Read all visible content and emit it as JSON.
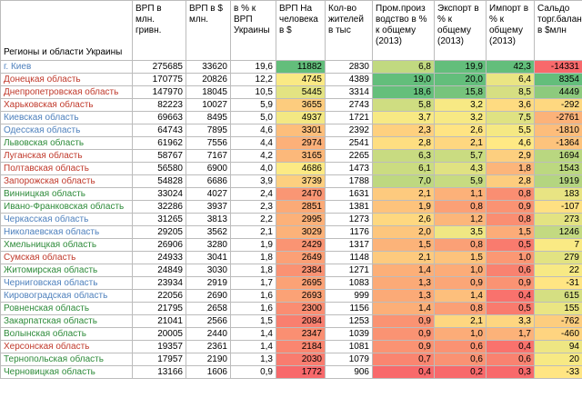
{
  "headers": [
    "Регионы и области Украины",
    "ВРП в млн. гривн.",
    "ВРП в $ млн.",
    "в % к ВРП Украины",
    "ВРП На человека в $",
    "Кол-во жителей в тыс",
    "Пром.произ водство в % к общему (2013)",
    "Экспорт в % к общему (2013)",
    "Импорт в % к общему (2013)",
    "Сальдо торг.баланса в $млн"
  ],
  "colors": {
    "region_blue": "#4f81bd",
    "region_red": "#c0392b",
    "region_green": "#2e8b3a",
    "heat_green": "#63be7b",
    "heat_yellow": "#ffeb84",
    "heat_red": "#f8696b"
  },
  "rows": [
    {
      "region": "г. Киев",
      "color": "blue",
      "c": [
        "275685",
        "33620",
        "19,6",
        "11882",
        "2830",
        "6,8",
        "19,9",
        "42,3",
        "-14331"
      ]
    },
    {
      "region": "Донецкая область",
      "color": "red",
      "c": [
        "170775",
        "20826",
        "12,2",
        "4745",
        "4389",
        "19,0",
        "20,0",
        "6,4",
        "8354"
      ]
    },
    {
      "region": "Днепропетровская область",
      "color": "red",
      "c": [
        "147970",
        "18045",
        "10,5",
        "5445",
        "3314",
        "18,6",
        "15,8",
        "8,5",
        "4449"
      ]
    },
    {
      "region": "Харьковская область",
      "color": "red",
      "c": [
        "82223",
        "10027",
        "5,9",
        "3655",
        "2743",
        "5,8",
        "3,2",
        "3,6",
        "-292"
      ]
    },
    {
      "region": "Киевская область",
      "color": "blue",
      "c": [
        "69663",
        "8495",
        "5,0",
        "4937",
        "1721",
        "3,7",
        "3,2",
        "7,5",
        "-2761"
      ]
    },
    {
      "region": "Одесская область",
      "color": "blue",
      "c": [
        "64743",
        "7895",
        "4,6",
        "3301",
        "2392",
        "2,3",
        "2,6",
        "5,5",
        "-1810"
      ]
    },
    {
      "region": "Львовская область",
      "color": "green",
      "c": [
        "61962",
        "7556",
        "4,4",
        "2974",
        "2541",
        "2,8",
        "2,1",
        "4,6",
        "-1364"
      ]
    },
    {
      "region": "Луганская область",
      "color": "red",
      "c": [
        "58767",
        "7167",
        "4,2",
        "3165",
        "2265",
        "6,3",
        "5,7",
        "2,9",
        "1694"
      ]
    },
    {
      "region": "Полтавская область",
      "color": "red",
      "c": [
        "56580",
        "6900",
        "4,0",
        "4686",
        "1473",
        "6,1",
        "4,3",
        "1,8",
        "1543"
      ]
    },
    {
      "region": "Запорожская область",
      "color": "red",
      "c": [
        "54828",
        "6686",
        "3,9",
        "3739",
        "1788",
        "7,0",
        "5,9",
        "2,8",
        "1919"
      ]
    },
    {
      "region": "Винницкая область",
      "color": "green",
      "c": [
        "33024",
        "4027",
        "2,4",
        "2470",
        "1631",
        "2,1",
        "1,1",
        "0,8",
        "183"
      ]
    },
    {
      "region": "Ивано-Франковская область",
      "color": "green",
      "c": [
        "32286",
        "3937",
        "2,3",
        "2851",
        "1381",
        "1,9",
        "0,8",
        "0,9",
        "-107"
      ]
    },
    {
      "region": "Черкасская область",
      "color": "blue",
      "c": [
        "31265",
        "3813",
        "2,2",
        "2995",
        "1273",
        "2,6",
        "1,2",
        "0,8",
        "273"
      ]
    },
    {
      "region": "Николаевская область",
      "color": "blue",
      "c": [
        "29205",
        "3562",
        "2,1",
        "3029",
        "1176",
        "2,0",
        "3,5",
        "1,5",
        "1246"
      ]
    },
    {
      "region": "Хмельницкая область",
      "color": "green",
      "c": [
        "26906",
        "3280",
        "1,9",
        "2429",
        "1317",
        "1,5",
        "0,8",
        "0,5",
        "7"
      ]
    },
    {
      "region": "Сумская область",
      "color": "red",
      "c": [
        "24933",
        "3041",
        "1,8",
        "2649",
        "1148",
        "2,1",
        "1,5",
        "1,0",
        "279"
      ]
    },
    {
      "region": "Житомирская область",
      "color": "green",
      "c": [
        "24849",
        "3030",
        "1,8",
        "2384",
        "1271",
        "1,4",
        "1,0",
        "0,6",
        "22"
      ]
    },
    {
      "region": "Черниговская область",
      "color": "blue",
      "c": [
        "23934",
        "2919",
        "1,7",
        "2695",
        "1083",
        "1,3",
        "0,9",
        "0,9",
        "-31"
      ]
    },
    {
      "region": "Кировоградская область",
      "color": "blue",
      "c": [
        "22056",
        "2690",
        "1,6",
        "2693",
        "999",
        "1,3",
        "1,4",
        "0,4",
        "615"
      ]
    },
    {
      "region": "Ровненская область",
      "color": "green",
      "c": [
        "21795",
        "2658",
        "1,6",
        "2300",
        "1156",
        "1,4",
        "0,8",
        "0,5",
        "155"
      ]
    },
    {
      "region": "Закарпатская область",
      "color": "green",
      "c": [
        "21041",
        "2566",
        "1,5",
        "2084",
        "1253",
        "0,9",
        "2,1",
        "3,3",
        "-762"
      ]
    },
    {
      "region": "Волынская область",
      "color": "green",
      "c": [
        "20005",
        "2440",
        "1,4",
        "2347",
        "1039",
        "0,9",
        "1,0",
        "1,7",
        "-460"
      ]
    },
    {
      "region": "Херсонская область",
      "color": "red",
      "c": [
        "19357",
        "2361",
        "1,4",
        "2184",
        "1081",
        "0,9",
        "0,6",
        "0,4",
        "94"
      ]
    },
    {
      "region": "Тернопольская область",
      "color": "green",
      "c": [
        "17957",
        "2190",
        "1,3",
        "2030",
        "1079",
        "0,7",
        "0,6",
        "0,6",
        "20"
      ]
    },
    {
      "region": "Черновицкая область",
      "color": "green",
      "c": [
        "13166",
        "1606",
        "0,9",
        "1772",
        "906",
        "0,4",
        "0,2",
        "0,3",
        "-33"
      ]
    }
  ]
}
